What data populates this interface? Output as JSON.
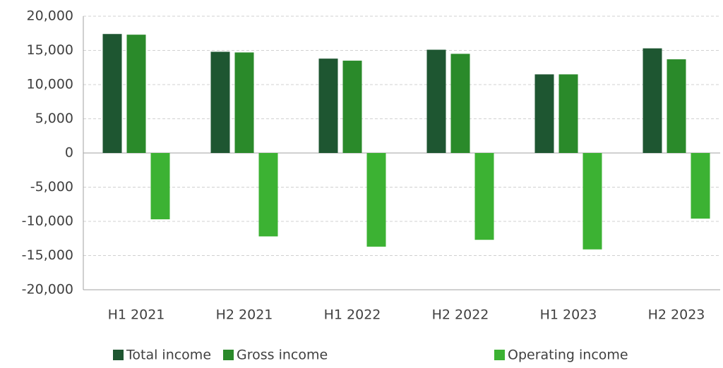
{
  "chart_data": {
    "type": "bar",
    "categories": [
      "H1 2021",
      "H2 2021",
      "H1 2022",
      "H2 2022",
      "H1 2023",
      "H2 2023"
    ],
    "series": [
      {
        "name": "Total income",
        "color": "#1e5631",
        "values": [
          17400,
          14800,
          13800,
          15100,
          11500,
          15300
        ]
      },
      {
        "name": "Gross income",
        "color": "#2a8a2a",
        "values": [
          17300,
          14700,
          13500,
          14500,
          11500,
          13700
        ]
      },
      {
        "name": "Operating income",
        "color": "#3cb233",
        "values": [
          -9700,
          -12200,
          -13700,
          -12700,
          -14100,
          -9600
        ]
      }
    ],
    "ylim": [
      -20000,
      20000
    ],
    "yticks": [
      {
        "value": -20000,
        "label": "-20,000"
      },
      {
        "value": -15000,
        "label": "-15,000"
      },
      {
        "value": -10000,
        "label": "-10,000"
      },
      {
        "value": -5000,
        "label": "-5,000"
      },
      0,
      {
        "value": 5000,
        "label": "5,000"
      },
      {
        "value": 10000,
        "label": "10,000"
      },
      {
        "value": 15000,
        "label": "15,000"
      },
      {
        "value": 20000,
        "label": "20,000"
      }
    ],
    "grid": true,
    "legend": "bottom"
  }
}
